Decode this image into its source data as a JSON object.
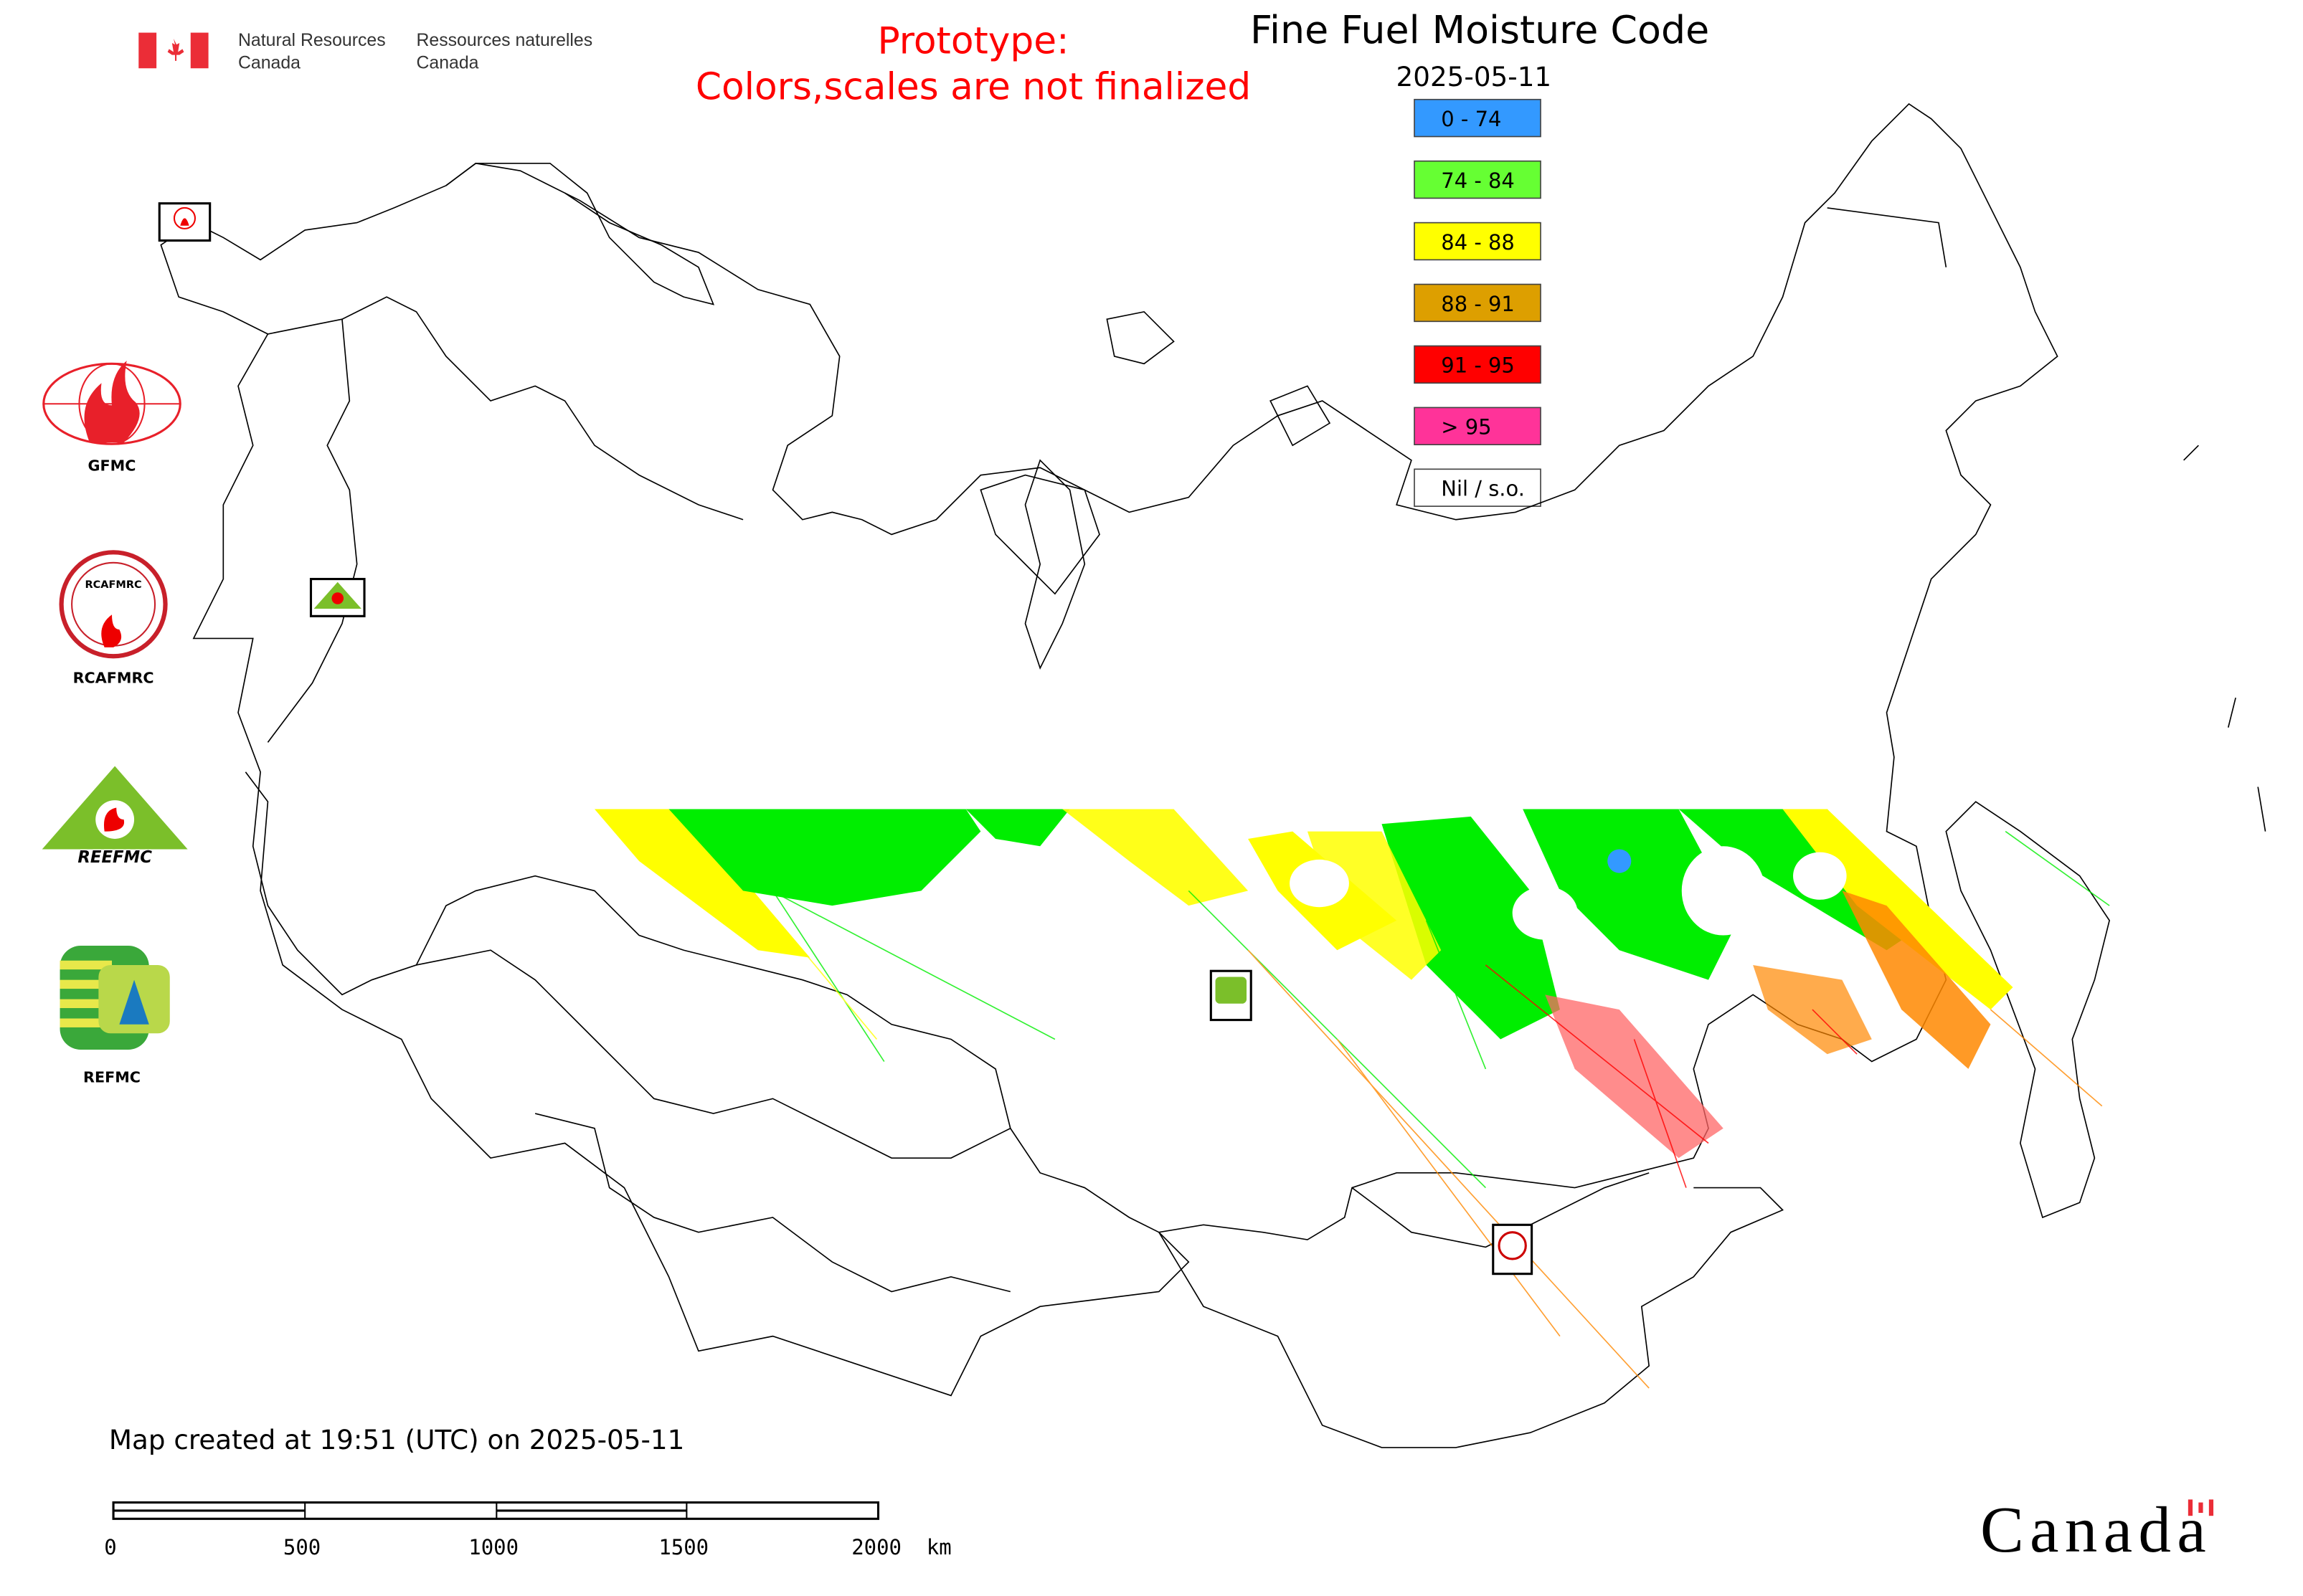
{
  "header": {
    "agency_en_line1": "Natural Resources",
    "agency_en_line2": "Canada",
    "agency_fr_line1": "Ressources naturelles",
    "agency_fr_line2": "Canada",
    "prototype_line1": "Prototype:",
    "prototype_line2": "Colors,scales are not finalized",
    "prototype_color": "#ff0000"
  },
  "map": {
    "title": "Fine Fuel Moisture Code",
    "date": "2025-05-11",
    "legend": [
      {
        "label": "0 - 74",
        "color": "#3399ff"
      },
      {
        "label": "74 - 84",
        "color": "#66ff33"
      },
      {
        "label": "84 - 88",
        "color": "#ffff00"
      },
      {
        "label": "88 - 91",
        "color": "#dd9f00"
      },
      {
        "label": "91 - 95",
        "color": "#ff0000"
      },
      {
        "label": "> 95",
        "color": "#ff3399"
      },
      {
        "label": "Nil / s.o.",
        "color": "#ffffff"
      }
    ]
  },
  "logos": {
    "gfmc": "GFMC",
    "rcafmrc": "RCAFMRC",
    "reefmc": "REEFMC",
    "refmc": "REFMC"
  },
  "footer": {
    "created": "Map created at 19:51 (UTC) on 2025-05-11",
    "scale_labels": [
      "0",
      "500",
      "1000",
      "1500",
      "2000  km"
    ],
    "wordmark": "Canada"
  }
}
